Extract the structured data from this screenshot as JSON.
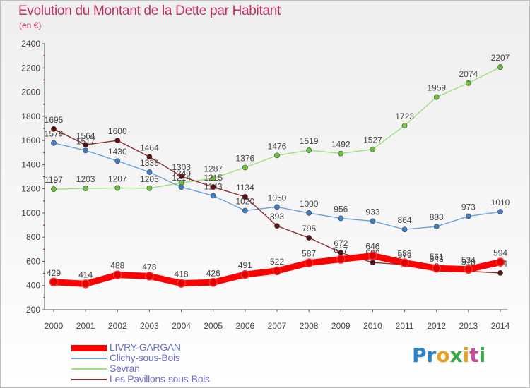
{
  "title": "Evolution du Montant de la Dette par Habitant",
  "subtitle": "(en €)",
  "logo": {
    "text": "Proxiti"
  },
  "chart_data": {
    "type": "line",
    "x": [
      "2000",
      "2001",
      "2002",
      "2003",
      "2004",
      "2005",
      "2006",
      "2007",
      "2008",
      "2009",
      "2010",
      "2011",
      "2012",
      "2013",
      "2014"
    ],
    "ylim": [
      200,
      2400
    ],
    "yticks": [
      "200",
      "400",
      "600",
      "800",
      "1000",
      "1200",
      "1400",
      "1600",
      "1800",
      "2000",
      "2200",
      "2400"
    ],
    "grid": false,
    "legend_position": "bottom-left",
    "series": [
      {
        "name": "LIVRY-GARGAN",
        "color": "#ff0000",
        "marker_color": "#e00000",
        "width": "thick",
        "values": [
          429,
          414,
          488,
          478,
          418,
          426,
          491,
          522,
          587,
          617,
          646,
          588,
          543,
          534,
          594
        ],
        "labels": [
          "429",
          "414",
          "488",
          "478",
          "418",
          "426",
          "491",
          "522",
          "587",
          "617",
          "646",
          "588",
          "543",
          "534",
          "594"
        ]
      },
      {
        "name": "Clichy-sous-Bois",
        "color": "#6aa3d8",
        "marker_color": "#3f7fc0",
        "width": "thin",
        "values": [
          1579,
          1517,
          1430,
          1338,
          1214,
          1143,
          1020,
          1050,
          1000,
          956,
          933,
          864,
          888,
          973,
          1010
        ],
        "labels": [
          "1579",
          "1517",
          "1430",
          "1338",
          "1214",
          "1143",
          "1020",
          "1050",
          "1000",
          "956",
          "933",
          "864",
          "888",
          "973",
          "1010"
        ]
      },
      {
        "name": "Sevran",
        "color": "#9ee07a",
        "marker_color": "#6cc23a",
        "width": "thin",
        "values": [
          1197,
          1203,
          1207,
          1205,
          1249,
          1287,
          1376,
          1476,
          1519,
          1492,
          1527,
          1723,
          1959,
          2074,
          2207
        ],
        "labels": [
          "1197",
          "1203",
          "1207",
          "1205",
          "1249",
          "1287",
          "1376",
          "1476",
          "1519",
          "1492",
          "1527",
          "1723",
          "1959",
          "2074",
          "2207"
        ]
      },
      {
        "name": "Les Pavillons-sous-Bois",
        "color": "#8a3030",
        "marker_color": "#5a1010",
        "width": "thin",
        "values": [
          1695,
          1564,
          1600,
          1464,
          1303,
          1215,
          1134,
          893,
          795,
          672,
          590,
          573,
          561,
          518,
          504
        ],
        "labels": [
          "1695",
          "1564",
          "1600",
          "1464",
          "1303",
          "1215",
          "1134",
          "893",
          "795",
          "672",
          "590",
          "573",
          "561",
          "518",
          "504"
        ]
      }
    ]
  }
}
